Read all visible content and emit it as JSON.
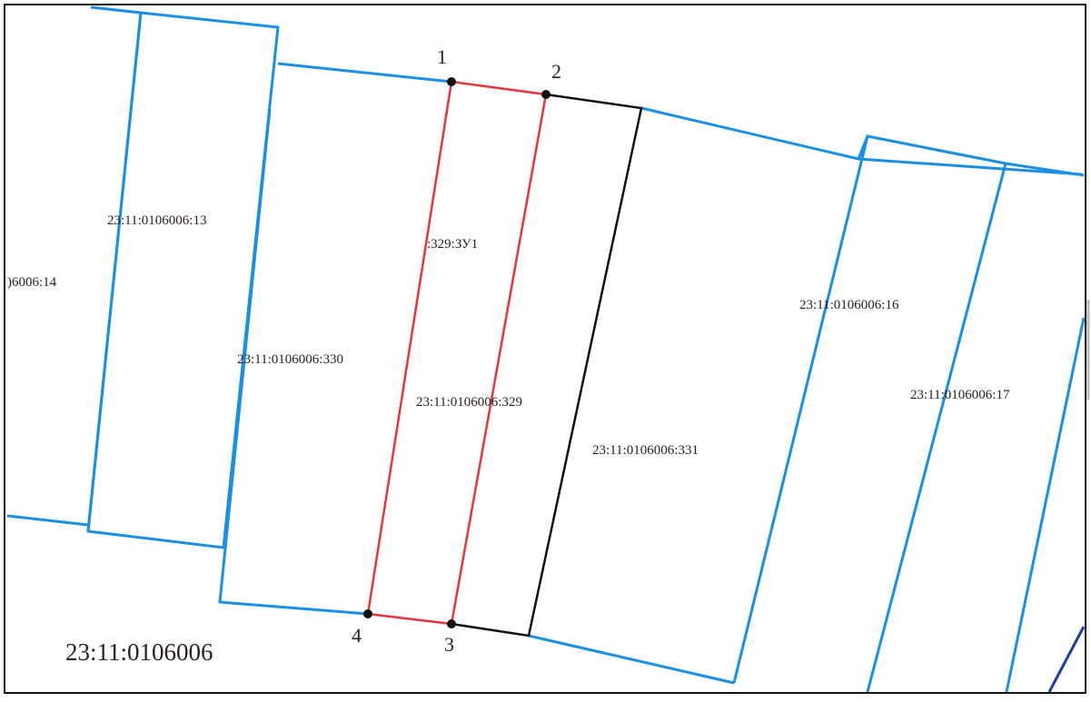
{
  "colors": {
    "parcel_boundary": "#1a8fe6",
    "new_parcel": "#e8343c",
    "existing_boundary": "#111111",
    "frame": "#111111",
    "vertex": "#111111",
    "text": "#2a2020",
    "dark_line": "#1b3fa8"
  },
  "cadastral_block": "23:11:0106006",
  "parcels": {
    "p14": ")6006:14",
    "p13": "23:11:0106006:13",
    "p330": "23:11:0106006:330",
    "new_parcel": ":329:ЗУ1",
    "p329": "23:11:0106006:329",
    "p331": "23:11:0106006:331",
    "p16": "23:11:0106006:16",
    "p17": "23:11:0106006:17"
  },
  "points": [
    "1",
    "2",
    "3",
    "4"
  ]
}
